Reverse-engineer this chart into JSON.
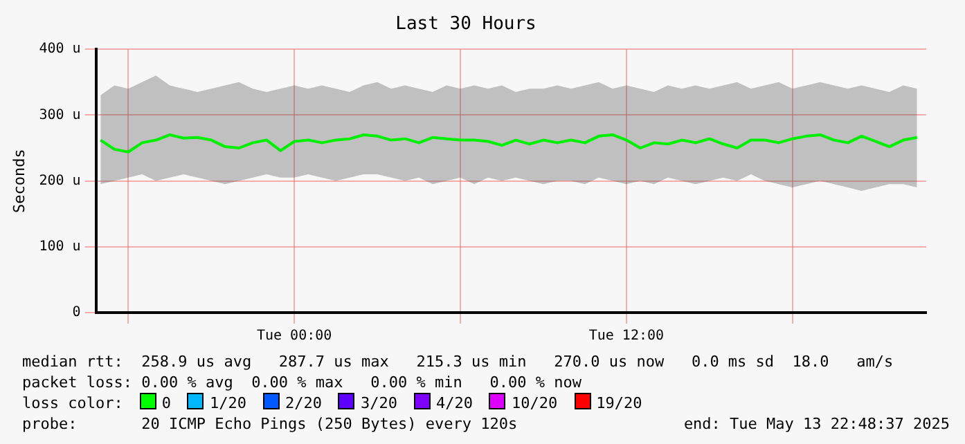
{
  "chart_data": {
    "type": "line",
    "title": "Last 30 Hours",
    "ylabel": "Seconds",
    "x": [
      "2025-05-12T17:00",
      "2025-05-12T17:30",
      "2025-05-12T18:00",
      "2025-05-12T18:30",
      "2025-05-12T19:00",
      "2025-05-12T19:30",
      "2025-05-12T20:00",
      "2025-05-12T20:30",
      "2025-05-12T21:00",
      "2025-05-12T21:30",
      "2025-05-12T22:00",
      "2025-05-12T22:30",
      "2025-05-12T23:00",
      "2025-05-12T23:30",
      "2025-05-13T00:00",
      "2025-05-13T00:30",
      "2025-05-13T01:00",
      "2025-05-13T01:30",
      "2025-05-13T02:00",
      "2025-05-13T02:30",
      "2025-05-13T03:00",
      "2025-05-13T03:30",
      "2025-05-13T04:00",
      "2025-05-13T04:30",
      "2025-05-13T05:00",
      "2025-05-13T05:30",
      "2025-05-13T06:00",
      "2025-05-13T06:30",
      "2025-05-13T07:00",
      "2025-05-13T07:30",
      "2025-05-13T08:00",
      "2025-05-13T08:30",
      "2025-05-13T09:00",
      "2025-05-13T09:30",
      "2025-05-13T10:00",
      "2025-05-13T10:30",
      "2025-05-13T11:00",
      "2025-05-13T11:30",
      "2025-05-13T12:00",
      "2025-05-13T12:30",
      "2025-05-13T13:00",
      "2025-05-13T13:30",
      "2025-05-13T14:00",
      "2025-05-13T14:30",
      "2025-05-13T15:00",
      "2025-05-13T15:30",
      "2025-05-13T16:00",
      "2025-05-13T16:30",
      "2025-05-13T17:00",
      "2025-05-13T17:30",
      "2025-05-13T18:00",
      "2025-05-13T18:30",
      "2025-05-13T19:00",
      "2025-05-13T19:30",
      "2025-05-13T20:00",
      "2025-05-13T20:30",
      "2025-05-13T21:00",
      "2025-05-13T21:30",
      "2025-05-13T22:00",
      "2025-05-13T22:30"
    ],
    "series": [
      {
        "color": "#00ee00",
        "values": [
          262,
          248,
          244,
          258,
          262,
          270,
          265,
          266,
          262,
          252,
          250,
          258,
          262,
          246,
          260,
          262,
          258,
          262,
          264,
          270,
          268,
          262,
          264,
          258,
          266,
          264,
          262,
          262,
          260,
          254,
          262,
          256,
          262,
          258,
          262,
          258,
          268,
          270,
          262,
          250,
          258,
          256,
          262,
          258,
          264,
          256,
          250,
          262,
          262,
          258,
          264,
          268,
          270,
          262,
          258,
          268,
          260,
          252,
          262,
          266
        ],
        "lower": [
          195,
          200,
          205,
          210,
          200,
          205,
          210,
          205,
          200,
          195,
          200,
          205,
          210,
          205,
          205,
          210,
          205,
          200,
          205,
          210,
          210,
          205,
          200,
          205,
          195,
          200,
          205,
          195,
          205,
          200,
          205,
          200,
          195,
          200,
          200,
          195,
          205,
          200,
          195,
          200,
          195,
          205,
          200,
          195,
          200,
          205,
          200,
          210,
          200,
          195,
          190,
          195,
          200,
          195,
          190,
          185,
          190,
          195,
          195,
          190
        ],
        "upper": [
          330,
          345,
          340,
          350,
          360,
          345,
          340,
          335,
          340,
          345,
          350,
          340,
          335,
          340,
          345,
          340,
          345,
          340,
          335,
          345,
          350,
          340,
          345,
          340,
          335,
          345,
          340,
          345,
          340,
          345,
          335,
          340,
          340,
          345,
          340,
          345,
          350,
          340,
          345,
          340,
          335,
          345,
          340,
          345,
          340,
          345,
          350,
          340,
          345,
          350,
          340,
          345,
          350,
          345,
          340,
          345,
          340,
          335,
          345,
          340
        ]
      }
    ],
    "xlim": [
      "2025-05-12T16:50",
      "2025-05-13T22:50"
    ],
    "xticks": [
      {
        "value": "2025-05-12T18:00",
        "label": null
      },
      {
        "value": "2025-05-13T00:00",
        "label": "Tue 00:00"
      },
      {
        "value": "2025-05-13T06:00",
        "label": null
      },
      {
        "value": "2025-05-13T12:00",
        "label": "Tue 12:00"
      },
      {
        "value": "2025-05-13T18:00",
        "label": null
      }
    ],
    "ylim": [
      0,
      400
    ],
    "yticks": [
      0,
      {
        "value": 100,
        "label": "100 u"
      },
      {
        "value": 200,
        "label": "200 u"
      },
      {
        "value": 300,
        "label": "300 u"
      },
      {
        "value": 400,
        "label": "400 u"
      }
    ],
    "grid": true,
    "legend": false,
    "marker": "none",
    "line_style": "solid",
    "annotations": [
      "median rtt:  258.9 us avg   287.7 us max   215.3 us min   270.0 us now   0.0 ms sd  18.0   am/s",
      "packet loss: 0.00 % avg  0.00 % max   0.00 % min   0.00 % now",
      "loss color:",
      "0",
      "1/20",
      "2/20",
      "3/20",
      "4/20",
      "10/20",
      "19/20",
      "probe:       20 ICMP Echo Pings (250 Bytes) every 120s",
      "end: Tue May 13 22:48:37 2025"
    ]
  }
}
